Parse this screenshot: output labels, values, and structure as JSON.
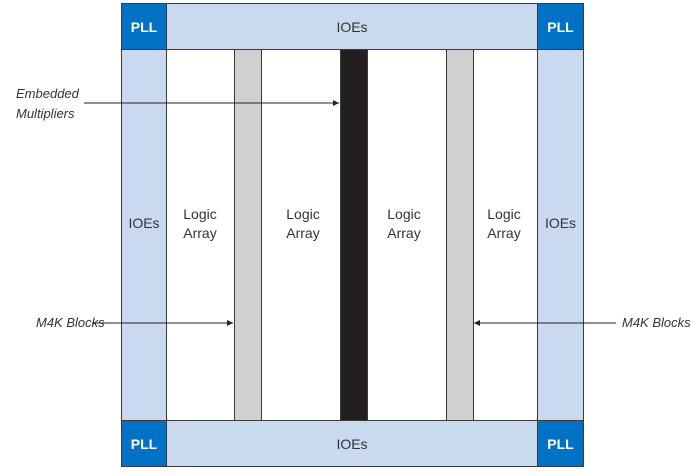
{
  "blocks": {
    "pll": "PLL",
    "ioes": "IOEs",
    "logic_array_line1": "Logic",
    "logic_array_line2": "Array"
  },
  "labels": {
    "embedded_line1": "Embedded",
    "embedded_line2": "Multipliers",
    "m4k_left": "M4K Blocks",
    "m4k_right": "M4K Blocks"
  },
  "colors": {
    "pll": "#0072c6",
    "ioe": "#c9daf0",
    "m4k": "#d0d0d0",
    "multiplier": "#231f20"
  }
}
